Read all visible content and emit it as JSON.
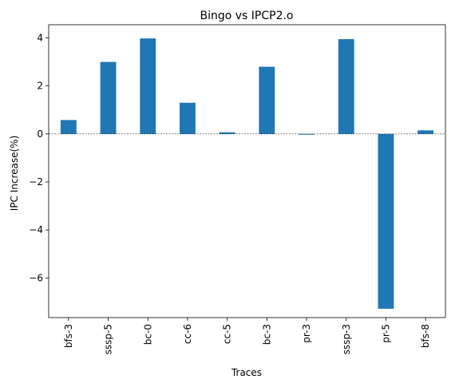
{
  "chart_data": {
    "type": "bar",
    "title": "Bingo vs IPCP2.o",
    "xlabel": "Traces",
    "ylabel": "IPC Increase(%)",
    "categories": [
      "bfs-3",
      "sssp-5",
      "bc-0",
      "cc-6",
      "cc-5",
      "bc-3",
      "pr-3",
      "sssp-3",
      "pr-5",
      "bfs-8"
    ],
    "values": [
      0.58,
      3.0,
      3.98,
      1.3,
      0.07,
      2.8,
      -0.03,
      3.95,
      -7.28,
      0.15
    ],
    "ylim": [
      -7.65,
      4.55
    ],
    "yticks": [
      -6,
      -4,
      -2,
      0,
      2,
      4
    ],
    "ytick_labels": [
      "−6",
      "−4",
      "−2",
      "0",
      "2",
      "4"
    ],
    "bar_color": "#1f77b4",
    "zero_line": true,
    "grid": false,
    "legend": "none"
  }
}
